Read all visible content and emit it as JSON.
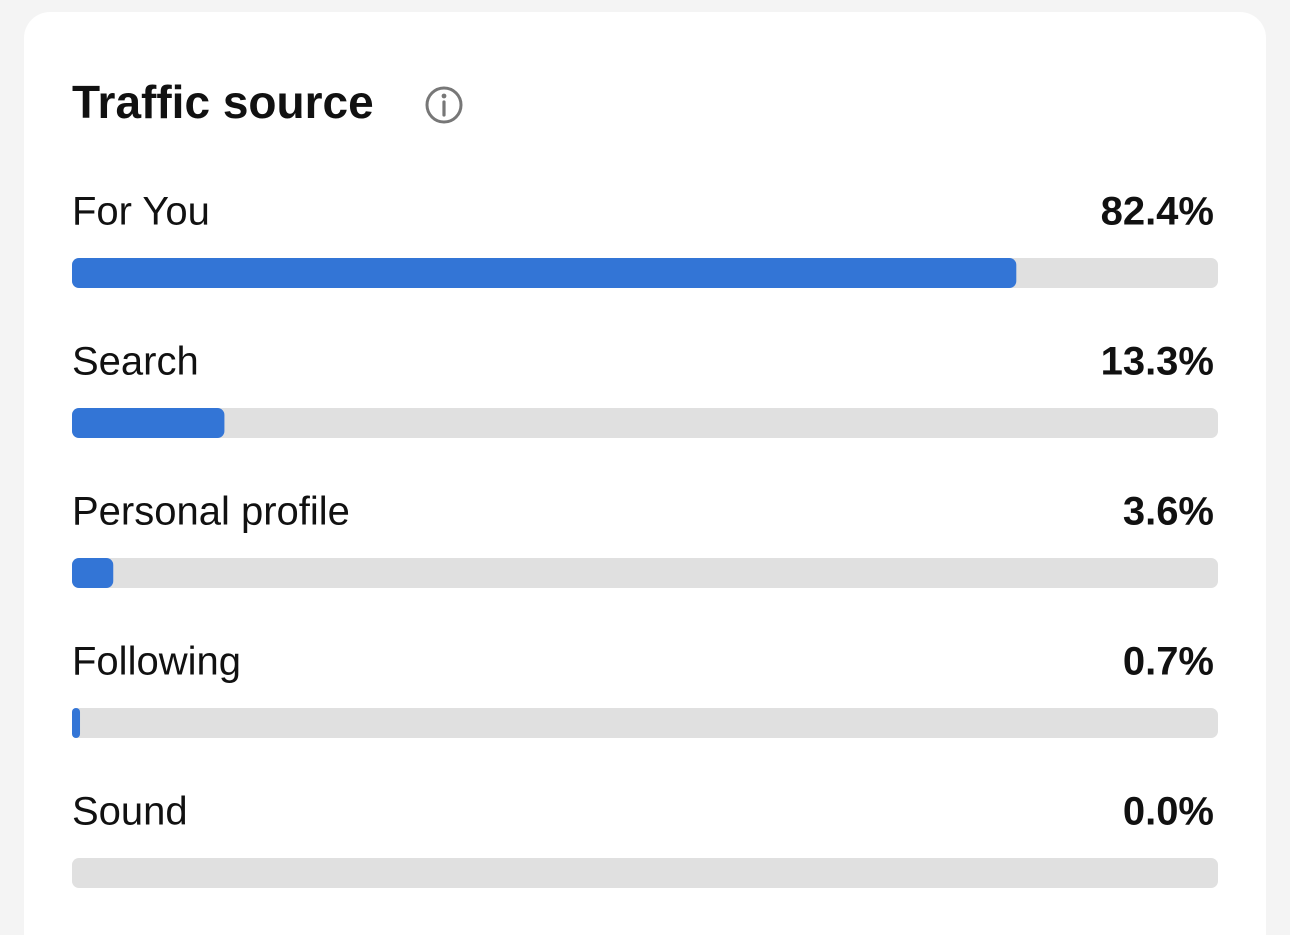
{
  "chart_data": {
    "type": "hbar",
    "title": "Traffic source",
    "categories": [
      "For You",
      "Search",
      "Personal profile",
      "Following",
      "Sound"
    ],
    "values": [
      82.4,
      13.3,
      3.6,
      0.7,
      0.0
    ],
    "value_labels": [
      "82.4%",
      "13.3%",
      "3.6%",
      "0.7%",
      "0.0%"
    ],
    "xlim": [
      0,
      100
    ],
    "color": "#3375d6",
    "track_color": "#e0e0e0"
  }
}
